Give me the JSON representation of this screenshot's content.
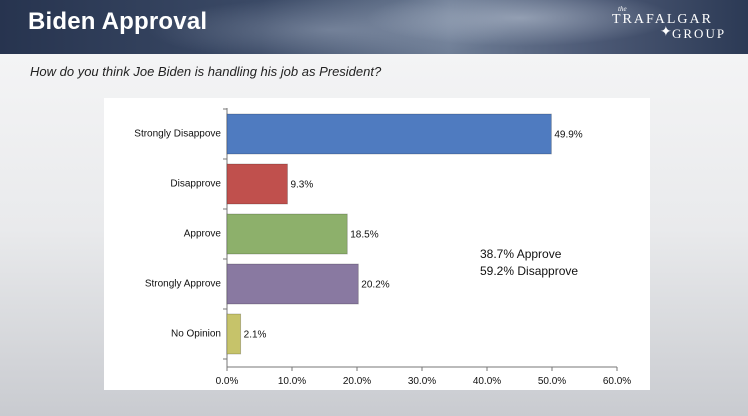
{
  "header": {
    "title": "Biden Approval"
  },
  "logo": {
    "the": "the",
    "line1": "TRAFALGAR",
    "line2": "GROUP",
    "icon": "compass-icon"
  },
  "question": "How do you think Joe Biden is handling his job as President?",
  "summary": {
    "approve": "38.7% Approve",
    "disapprove": "59.2% Disapprove"
  },
  "chart_data": {
    "type": "bar",
    "orientation": "horizontal",
    "categories": [
      "Strongly Disappove",
      "Disapprove",
      "Approve",
      "Strongly Approve",
      "No Opinion"
    ],
    "values": [
      49.9,
      9.3,
      18.5,
      20.2,
      2.1
    ],
    "value_labels": [
      "49.9%",
      "9.3%",
      "18.5%",
      "20.2%",
      "2.1%"
    ],
    "colors": [
      "#4f7bc0",
      "#c0504d",
      "#8db06b",
      "#8979a1",
      "#c6c36a"
    ],
    "xlim": [
      0,
      60
    ],
    "xticks": [
      "0.0%",
      "10.0%",
      "20.0%",
      "30.0%",
      "40.0%",
      "50.0%",
      "60.0%"
    ],
    "grid": false,
    "legend": "none"
  }
}
